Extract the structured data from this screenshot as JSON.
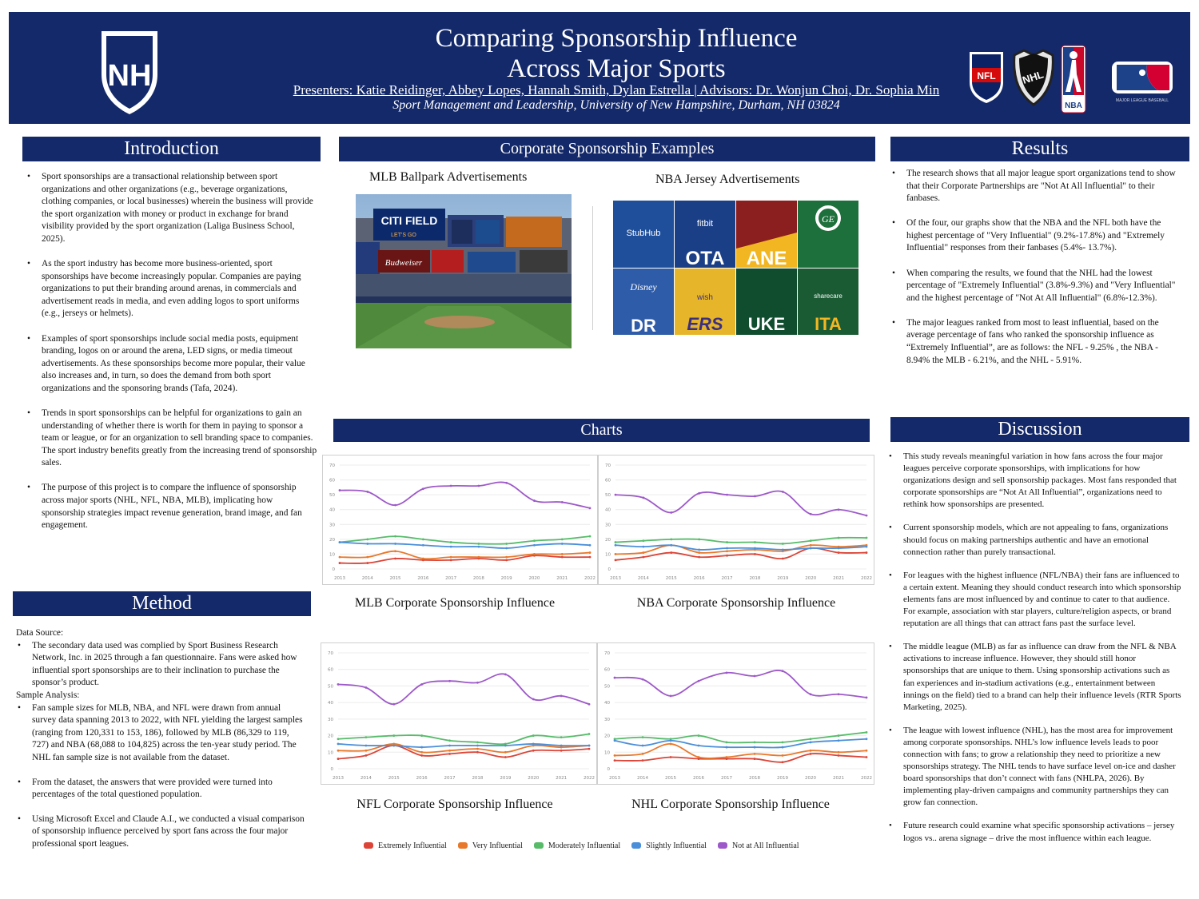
{
  "header": {
    "title_line1": "Comparing Sponsorship Influence",
    "title_line2": "Across Major Sports",
    "presenters": "Presenters: Katie Reidinger, Abbey Lopes, Hannah Smith, Dylan Estrella | Advisors: Dr. Wonjun Choi, Dr. Sophia Min",
    "affiliation": "Sport Management and Leadership, University of New Hampshire, Durham, NH 03824",
    "logo_text": "NH",
    "league_logos": [
      "NFL",
      "NHL",
      "NBA",
      "MAJOR LEAGUE BASEBALL"
    ]
  },
  "sections": {
    "introduction": "Introduction",
    "examples": "Corporate Sponsorship Examples",
    "results": "Results",
    "method": "Method",
    "charts": "Charts",
    "discussion": "Discussion"
  },
  "introduction": [
    "Sport sponsorships are a transactional relationship between sport organizations and other organizations (e.g., beverage organizations, clothing companies, or local businesses) wherein the business will provide the sport organization with money or product in exchange for brand visibility provided by the sport organization (Laliga Business School, 2025).",
    "As the sport industry has become more business-oriented, sport sponsorships have become increasingly popular. Companies are paying organizations to put their branding around arenas, in commercials and advertisement reads in media, and even adding logos to sport uniforms (e.g., jerseys or helmets).",
    "Examples of sport sponsorships include social media posts, equipment branding, logos on or around the arena, LED signs, or media timeout advertisements. As these sponsorships become more popular, their value also increases and, in turn, so does the demand from both sport organizations and the sponsoring brands (Tafa, 2024).",
    "Trends in sport sponsorships can be helpful for organizations to gain an understanding of whether there is worth for them in paying to sponsor a team or league, or for an organization to sell branding space to companies. The sport industry benefits greatly from the increasing trend of sponsorship sales.",
    "The purpose of this project is to compare the influence of sponsorship across major sports (NHL, NFL, NBA, MLB), implicating how sponsorship strategies impact revenue generation, brand image, and fan engagement."
  ],
  "method": {
    "data_source_label": "Data Source:",
    "data_source": "The secondary data used was complied by Sport Business Research Network, Inc. in 2025 through a fan questionnaire. Fans were asked how influential sport sponsorships are to their inclination to purchase the sponsor’s product.",
    "sample_label": "Sample Analysis:",
    "sample_items": [
      "Fan sample sizes for MLB, NBA, and NFL were drawn from annual survey data spanning 2013 to 2022, with NFL yielding the largest samples (ranging from 120,331 to 153, 186), followed by MLB (86,329 to 119, 727) and NBA (68,088 to 104,825) across the ten-year study period. The NHL fan sample size is not available from the dataset.",
      "From the dataset, the answers that were provided were turned into percentages of the total questioned population.",
      "Using Microsoft Excel and Claude A.I., we conducted a visual comparison of sponsorship influence perceived by sport fans across the four major professional sport leagues."
    ]
  },
  "examples": {
    "mlb_caption": "MLB Ballpark Advertisements",
    "nba_caption": "NBA Jersey Advertisements",
    "mlb_sign_text": "CITI FIELD",
    "mlb_sign_sub": "LET'S GO",
    "mlb_budweiser": "Budweiser",
    "jersey_brands": [
      "StubHub",
      "fitbit",
      "",
      "GE",
      "Disney",
      "wish",
      "",
      "sharecare"
    ],
    "jersey_fragments": [
      "",
      "OTA",
      "ANE",
      "",
      "DR",
      "ERS",
      "UKE",
      "ITA"
    ]
  },
  "results": [
    "The research shows that all major league sport organizations tend to show that their Corporate Partnerships are \"Not At All Influential\" to their fanbases.",
    "Of the four, our graphs show that the NBA and the NFL both have the highest percentage of \"Very Influential\" (9.2%-17.8%) and \"Extremely Influential\" responses from their fanbases (5.4%- 13.7%).",
    "When comparing the results, we found that the NHL had the lowest percentage of \"Extremely Influential\" (3.8%-9.3%) and \"Very Influential\" and the highest percentage of \"Not At All Influential\" (6.8%-12.3%).",
    "The major leagues ranked from most to least influential, based on the average percentage of fans who ranked the sponsorship influence as “Extremely Influential”, are as follows: the NFL - 9.25% , the NBA - 8.94% the MLB - 6.21%, and the NHL - 5.91%."
  ],
  "discussion": [
    "This study reveals meaningful variation in how fans across the four major leagues perceive corporate sponsorships, with implications for how organizations design and sell sponsorship packages. Most fans responded that corporate sponsorships are “Not At All Influential”, organizations need to rethink how sponsorships are presented.",
    "Current sponsorship models, which are not appealing to fans, organizations should focus on making partnerships authentic and have an emotional connection rather than purely transactional.",
    "For leagues with the highest influence (NFL/NBA) their fans are influenced to a certain extent. Meaning they should conduct research into which sponsorship elements fans are most influenced by and continue to cater to that audience. For example, association with star players, culture/religion aspects, or brand reputation are all things that can attract fans past the surface level.",
    "The middle league (MLB) as far as influence can draw from the NFL & NBA activations to increase influence. However, they should still honor sponsorships that are unique to them. Using sponsorship activations such as fan experiences and in-stadium activations (e.g., entertainment between innings on the field) tied to a brand can help their influence levels (RTR Sports Marketing, 2025).",
    "The league with lowest influence (NHL), has the most area for improvement among corporate sponsorships. NHL’s low influence levels leads to poor connection with fans; to grow a relationship they need to prioritize a new sponsorships strategy. The NHL tends to have surface level on-ice and dasher board sponsorships that don’t connect with fans (NHLPA, 2026). By implementing play-driven campaigns and community partnerships they can grow fan connection.",
    "Future research could examine what specific sponsorship activations – jersey logos vs.. arena signage – drive the most influence within  each league."
  ],
  "legend": [
    {
      "name": "Extremely Influential",
      "color": "#db4437"
    },
    {
      "name": "Very Influential",
      "color": "#e8782a"
    },
    {
      "name": "Moderately Influential",
      "color": "#57bb6a"
    },
    {
      "name": "Slightly Influential",
      "color": "#4a8fd9"
    },
    {
      "name": "Not at All Influential",
      "color": "#9d59c9"
    }
  ],
  "chart_data": [
    {
      "type": "line",
      "title": "MLB Corporate Sponsorship Influence",
      "x": [
        "2013",
        "2014",
        "2015",
        "2016",
        "2017",
        "2018",
        "2019",
        "2020",
        "2021",
        "2022"
      ],
      "yticks": [
        0,
        10,
        20,
        30,
        40,
        50,
        60,
        70
      ],
      "ylim": [
        0,
        70
      ],
      "grid": true,
      "series": [
        {
          "name": "Extremely Influential",
          "color": "#db4437",
          "values": [
            4,
            4,
            7,
            6,
            6,
            7,
            6,
            9,
            8,
            8
          ]
        },
        {
          "name": "Very Influential",
          "color": "#e8782a",
          "values": [
            8,
            8,
            12,
            7,
            8,
            8,
            8,
            10,
            10,
            11
          ]
        },
        {
          "name": "Moderately Influential",
          "color": "#57bb6a",
          "values": [
            18,
            20,
            22,
            20,
            18,
            17,
            17,
            19,
            20,
            22
          ]
        },
        {
          "name": "Slightly Influential",
          "color": "#4a8fd9",
          "values": [
            18,
            17,
            17,
            16,
            15,
            15,
            14,
            16,
            17,
            16
          ]
        },
        {
          "name": "Not at All Influential",
          "color": "#9d59c9",
          "values": [
            53,
            52,
            43,
            54,
            56,
            56,
            58,
            46,
            45,
            41
          ]
        }
      ]
    },
    {
      "type": "line",
      "title": "NBA Corporate Sponsorship Influence",
      "x": [
        "2013",
        "2014",
        "2015",
        "2016",
        "2017",
        "2018",
        "2019",
        "2020",
        "2021",
        "2022"
      ],
      "yticks": [
        0,
        10,
        20,
        30,
        40,
        50,
        60,
        70
      ],
      "ylim": [
        0,
        70
      ],
      "grid": true,
      "series": [
        {
          "name": "Extremely Influential",
          "color": "#db4437",
          "values": [
            6,
            8,
            11,
            8,
            9,
            10,
            7,
            14,
            11,
            11
          ]
        },
        {
          "name": "Very Influential",
          "color": "#e8782a",
          "values": [
            10,
            11,
            16,
            11,
            12,
            13,
            12,
            16,
            15,
            16
          ]
        },
        {
          "name": "Moderately Influential",
          "color": "#57bb6a",
          "values": [
            18,
            19,
            20,
            20,
            18,
            18,
            17,
            19,
            21,
            21
          ]
        },
        {
          "name": "Slightly Influential",
          "color": "#4a8fd9",
          "values": [
            16,
            15,
            16,
            13,
            14,
            14,
            13,
            14,
            14,
            15
          ]
        },
        {
          "name": "Not at All Influential",
          "color": "#9d59c9",
          "values": [
            50,
            48,
            38,
            51,
            50,
            49,
            52,
            37,
            40,
            36
          ]
        }
      ]
    },
    {
      "type": "line",
      "title": "NFL Corporate Sponsorship Influence",
      "x": [
        "2013",
        "2014",
        "2015",
        "2016",
        "2017",
        "2018",
        "2019",
        "2020",
        "2021",
        "2022"
      ],
      "yticks": [
        0,
        10,
        20,
        30,
        40,
        50,
        60,
        70
      ],
      "ylim": [
        0,
        70
      ],
      "grid": true,
      "series": [
        {
          "name": "Extremely Influential",
          "color": "#db4437",
          "values": [
            6,
            8,
            14,
            8,
            9,
            10,
            7,
            11,
            11,
            12
          ]
        },
        {
          "name": "Very Influential",
          "color": "#e8782a",
          "values": [
            11,
            11,
            15,
            10,
            11,
            12,
            10,
            14,
            13,
            14
          ]
        },
        {
          "name": "Moderately Influential",
          "color": "#57bb6a",
          "values": [
            18,
            19,
            20,
            20,
            17,
            16,
            15,
            20,
            19,
            21
          ]
        },
        {
          "name": "Slightly Influential",
          "color": "#4a8fd9",
          "values": [
            15,
            14,
            14,
            13,
            14,
            14,
            14,
            15,
            14,
            14
          ]
        },
        {
          "name": "Not at All Influential",
          "color": "#9d59c9",
          "values": [
            51,
            49,
            39,
            51,
            53,
            52,
            57,
            42,
            44,
            39
          ]
        }
      ]
    },
    {
      "type": "line",
      "title": "NHL Corporate Sponsorship Influence",
      "x": [
        "2013",
        "2014",
        "2015",
        "2016",
        "2017",
        "2018",
        "2019",
        "2020",
        "2021",
        "2022"
      ],
      "yticks": [
        0,
        10,
        20,
        30,
        40,
        50,
        60,
        70
      ],
      "ylim": [
        0,
        70
      ],
      "grid": true,
      "series": [
        {
          "name": "Extremely Influential",
          "color": "#db4437",
          "values": [
            5,
            5,
            7,
            6,
            6,
            6,
            4,
            9,
            8,
            7
          ]
        },
        {
          "name": "Very Influential",
          "color": "#e8782a",
          "values": [
            8,
            9,
            15,
            7,
            7,
            9,
            8,
            11,
            10,
            11
          ]
        },
        {
          "name": "Moderately Influential",
          "color": "#57bb6a",
          "values": [
            18,
            19,
            18,
            20,
            16,
            16,
            16,
            18,
            20,
            22
          ]
        },
        {
          "name": "Slightly Influential",
          "color": "#4a8fd9",
          "values": [
            17,
            14,
            17,
            14,
            13,
            13,
            13,
            16,
            17,
            18
          ]
        },
        {
          "name": "Not at All Influential",
          "color": "#9d59c9",
          "values": [
            55,
            54,
            44,
            53,
            58,
            56,
            59,
            45,
            45,
            43
          ]
        }
      ]
    }
  ]
}
